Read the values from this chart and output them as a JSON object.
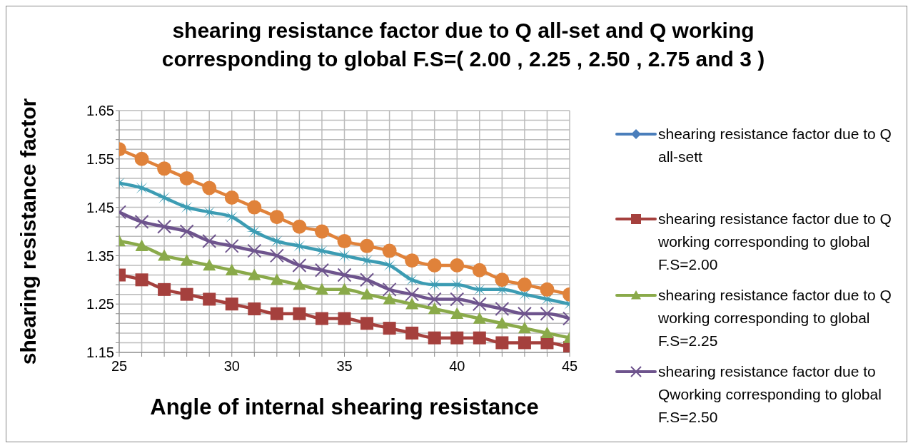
{
  "chart_data": {
    "type": "line",
    "title": "shearing resistance factor due to Q all-set and Q working corresponding to global F.S=( 2.00 , 2.25 , 2.50 , 2.75 and 3 )",
    "xlabel": "Angle of internal shearing resistance",
    "ylabel": "shearing resistance factor",
    "x": [
      25,
      26,
      27,
      28,
      29,
      30,
      31,
      32,
      33,
      34,
      35,
      36,
      37,
      38,
      39,
      40,
      41,
      42,
      43,
      44,
      45
    ],
    "series": [
      {
        "name": "shearing resistance factor due to Q all-sett",
        "color": "#4a7ebb",
        "marker": "diamond",
        "values": [
          null,
          null,
          null,
          null,
          null,
          null,
          null,
          null,
          null,
          null,
          null,
          null,
          null,
          null,
          null,
          null,
          null,
          null,
          null,
          null,
          null
        ]
      },
      {
        "name": "shearing resistance factor due to Q working corresponding to global F.S=2.00",
        "color": "#a5403d",
        "marker": "square",
        "values": [
          1.31,
          1.3,
          1.28,
          1.27,
          1.26,
          1.25,
          1.24,
          1.23,
          1.23,
          1.22,
          1.22,
          1.21,
          1.2,
          1.19,
          1.18,
          1.18,
          1.18,
          1.17,
          1.17,
          1.17,
          1.16
        ]
      },
      {
        "name": "shearing resistance factor due to Q working corresponding to global F.S=2.25",
        "color": "#8aaa4a",
        "marker": "triangle",
        "values": [
          1.38,
          1.37,
          1.35,
          1.34,
          1.33,
          1.32,
          1.31,
          1.3,
          1.29,
          1.28,
          1.28,
          1.27,
          1.26,
          1.25,
          1.24,
          1.23,
          1.22,
          1.21,
          1.2,
          1.19,
          1.18
        ]
      },
      {
        "name": "shearing resistance factor due to Qworking corresponding to global F.S=2.50",
        "color": "#6e548d",
        "marker": "cross",
        "values": [
          1.44,
          1.42,
          1.41,
          1.4,
          1.38,
          1.37,
          1.36,
          1.35,
          1.33,
          1.32,
          1.31,
          1.3,
          1.28,
          1.27,
          1.26,
          1.26,
          1.25,
          1.24,
          1.23,
          1.23,
          1.22
        ]
      },
      {
        "color": "#3c9cb3",
        "marker": "star",
        "values": [
          1.5,
          1.49,
          1.47,
          1.45,
          1.44,
          1.43,
          1.4,
          1.38,
          1.37,
          1.36,
          1.35,
          1.34,
          1.33,
          1.3,
          1.29,
          1.29,
          1.28,
          1.28,
          1.27,
          1.26,
          1.25
        ]
      },
      {
        "color": "#e0823a",
        "marker": "circle",
        "values": [
          1.57,
          1.55,
          1.53,
          1.51,
          1.49,
          1.47,
          1.45,
          1.43,
          1.41,
          1.4,
          1.38,
          1.37,
          1.36,
          1.34,
          1.33,
          1.33,
          1.32,
          1.3,
          1.29,
          1.28,
          1.27
        ]
      }
    ],
    "xlim": [
      25,
      45
    ],
    "xticks": [
      25,
      {
        "value": 26,
        "label": null
      },
      {
        "value": 27,
        "label": null
      },
      {
        "value": 28,
        "label": null
      },
      {
        "value": 29,
        "label": null
      },
      30,
      {
        "value": 31,
        "label": null
      },
      {
        "value": 32,
        "label": null
      },
      {
        "value": 33,
        "label": null
      },
      {
        "value": 34,
        "label": null
      },
      35,
      {
        "value": 36,
        "label": null
      },
      {
        "value": 37,
        "label": null
      },
      {
        "value": 38,
        "label": null
      },
      {
        "value": 39,
        "label": null
      },
      40,
      {
        "value": 41,
        "label": null
      },
      {
        "value": 42,
        "label": null
      },
      {
        "value": 43,
        "label": null
      },
      {
        "value": 44,
        "label": null
      },
      45
    ],
    "ylim": [
      1.15,
      1.65
    ],
    "yticks": [
      {
        "value": 1.15,
        "label": "1.15"
      },
      {
        "value": 1.17,
        "label": null
      },
      {
        "value": 1.19,
        "label": null
      },
      {
        "value": 1.21,
        "label": null
      },
      {
        "value": 1.23,
        "label": null
      },
      {
        "value": 1.25,
        "label": "1.25"
      },
      {
        "value": 1.27,
        "label": null
      },
      {
        "value": 1.29,
        "label": null
      },
      {
        "value": 1.31,
        "label": null
      },
      {
        "value": 1.33,
        "label": null
      },
      {
        "value": 1.35,
        "label": "1.35"
      },
      {
        "value": 1.37,
        "label": null
      },
      {
        "value": 1.39,
        "label": null
      },
      {
        "value": 1.41,
        "label": null
      },
      {
        "value": 1.43,
        "label": null
      },
      {
        "value": 1.45,
        "label": "1.45"
      },
      {
        "value": 1.47,
        "label": null
      },
      {
        "value": 1.49,
        "label": null
      },
      {
        "value": 1.51,
        "label": null
      },
      {
        "value": 1.53,
        "label": null
      },
      {
        "value": 1.55,
        "label": "1.55"
      },
      {
        "value": 1.57,
        "label": null
      },
      {
        "value": 1.59,
        "label": null
      },
      {
        "value": 1.61,
        "label": null
      },
      {
        "value": 1.63,
        "label": null
      },
      {
        "value": 1.65,
        "label": "1.65"
      }
    ],
    "grid": true,
    "legend": "right"
  }
}
